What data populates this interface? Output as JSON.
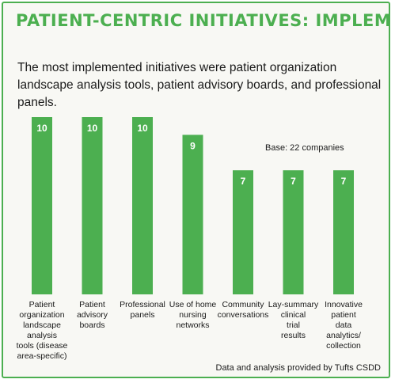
{
  "header": {
    "title": "PATIENT-CENTRIC INITIATIVES: IMPLEMENTED",
    "subtitle": "The most implemented initiatives were patient organization landscape analysis tools, patient advisory boards, and professional panels."
  },
  "note": "Base: 22 companies",
  "source": "Data and analysis provided by Tufts CSDD",
  "colors": {
    "accent": "#4caf50",
    "background": "#f8f8f4"
  },
  "chart_data": {
    "type": "bar",
    "categories": [
      [
        "Patient",
        "organization",
        "landscape",
        "analysis",
        "tools (disease",
        "area-specific)"
      ],
      [
        "Patient",
        "advisory",
        "boards"
      ],
      [
        "Professional",
        "panels"
      ],
      [
        "Use of home",
        "nursing",
        "networks"
      ],
      [
        "Community",
        "conversations"
      ],
      [
        "Lay-summary",
        "clinical",
        "trial",
        "results"
      ],
      [
        "Innovative",
        "patient",
        "data",
        "analytics/",
        "collection"
      ]
    ],
    "values": [
      10,
      10,
      10,
      9,
      7,
      7,
      7
    ],
    "data_labels": [
      "10",
      "10",
      "10",
      "9",
      "7",
      "7",
      "7"
    ],
    "ylim": [
      0,
      10
    ],
    "grid": false,
    "legend": "none"
  }
}
